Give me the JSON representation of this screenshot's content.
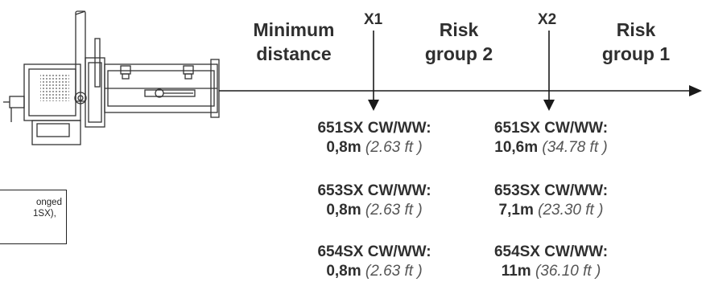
{
  "zones": {
    "minimum": {
      "line1": "Minimum",
      "line2": "distance"
    },
    "rg2": {
      "line1": "Risk",
      "line2": "group 2"
    },
    "rg1": {
      "line1": "Risk",
      "line2": "group 1"
    }
  },
  "markers": {
    "x1": "X1",
    "x2": "X2"
  },
  "x1_specs": [
    {
      "model": "651SX CW/WW:",
      "metric": "0,8m",
      "imperial": "(2.63 ft )"
    },
    {
      "model": "653SX CW/WW:",
      "metric": "0,8m",
      "imperial": "(2.63 ft )"
    },
    {
      "model": "654SX CW/WW:",
      "metric": "0,8m",
      "imperial": "(2.63 ft )"
    }
  ],
  "x2_specs": [
    {
      "model": "651SX CW/WW:",
      "metric": "10,6m",
      "imperial": "(34.78 ft )"
    },
    {
      "model": "653SX CW/WW:",
      "metric": "7,1m",
      "imperial": "(23.30 ft )"
    },
    {
      "model": "654SX CW/WW:",
      "metric": "11m",
      "imperial": "(36.10 ft )"
    }
  ],
  "note": {
    "line1": "onged",
    "line2": "1SX),"
  },
  "colors": {
    "line": "#1a1a1a",
    "fixture": "#333333"
  }
}
